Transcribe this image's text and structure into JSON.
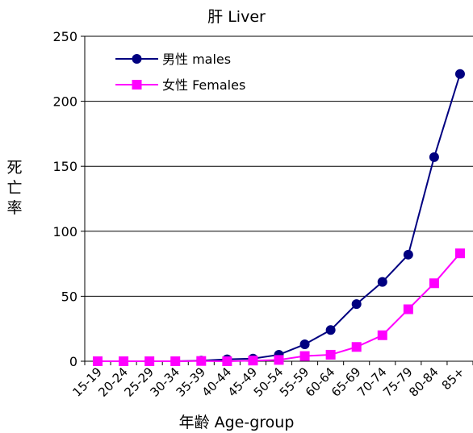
{
  "chart_data": {
    "type": "line",
    "title": "肝 Liver",
    "xlabel": "年齢 Age-group",
    "ylabel": "死亡率",
    "categories": [
      "15-19",
      "20-24",
      "25-29",
      "30-34",
      "35-39",
      "40-44",
      "45-49",
      "50-54",
      "55-59",
      "60-64",
      "65-69",
      "70-74",
      "75-79",
      "80-84",
      "85+"
    ],
    "ylim": [
      0,
      250
    ],
    "yticks": [
      0,
      50,
      100,
      150,
      200,
      250
    ],
    "grid": "horizontal",
    "legend": "top-left",
    "series": [
      {
        "name": "男性 males",
        "color": "#000080",
        "marker": "circle",
        "values": [
          0,
          0,
          0,
          0,
          0.5,
          1.5,
          2,
          5,
          13,
          24,
          44,
          61,
          82,
          157,
          221
        ]
      },
      {
        "name": "女性 Females",
        "color": "#FF00FF",
        "marker": "square",
        "values": [
          0,
          0,
          0,
          0,
          0.2,
          0,
          0.5,
          1,
          4,
          5,
          11,
          20,
          40,
          60,
          83
        ]
      }
    ]
  }
}
